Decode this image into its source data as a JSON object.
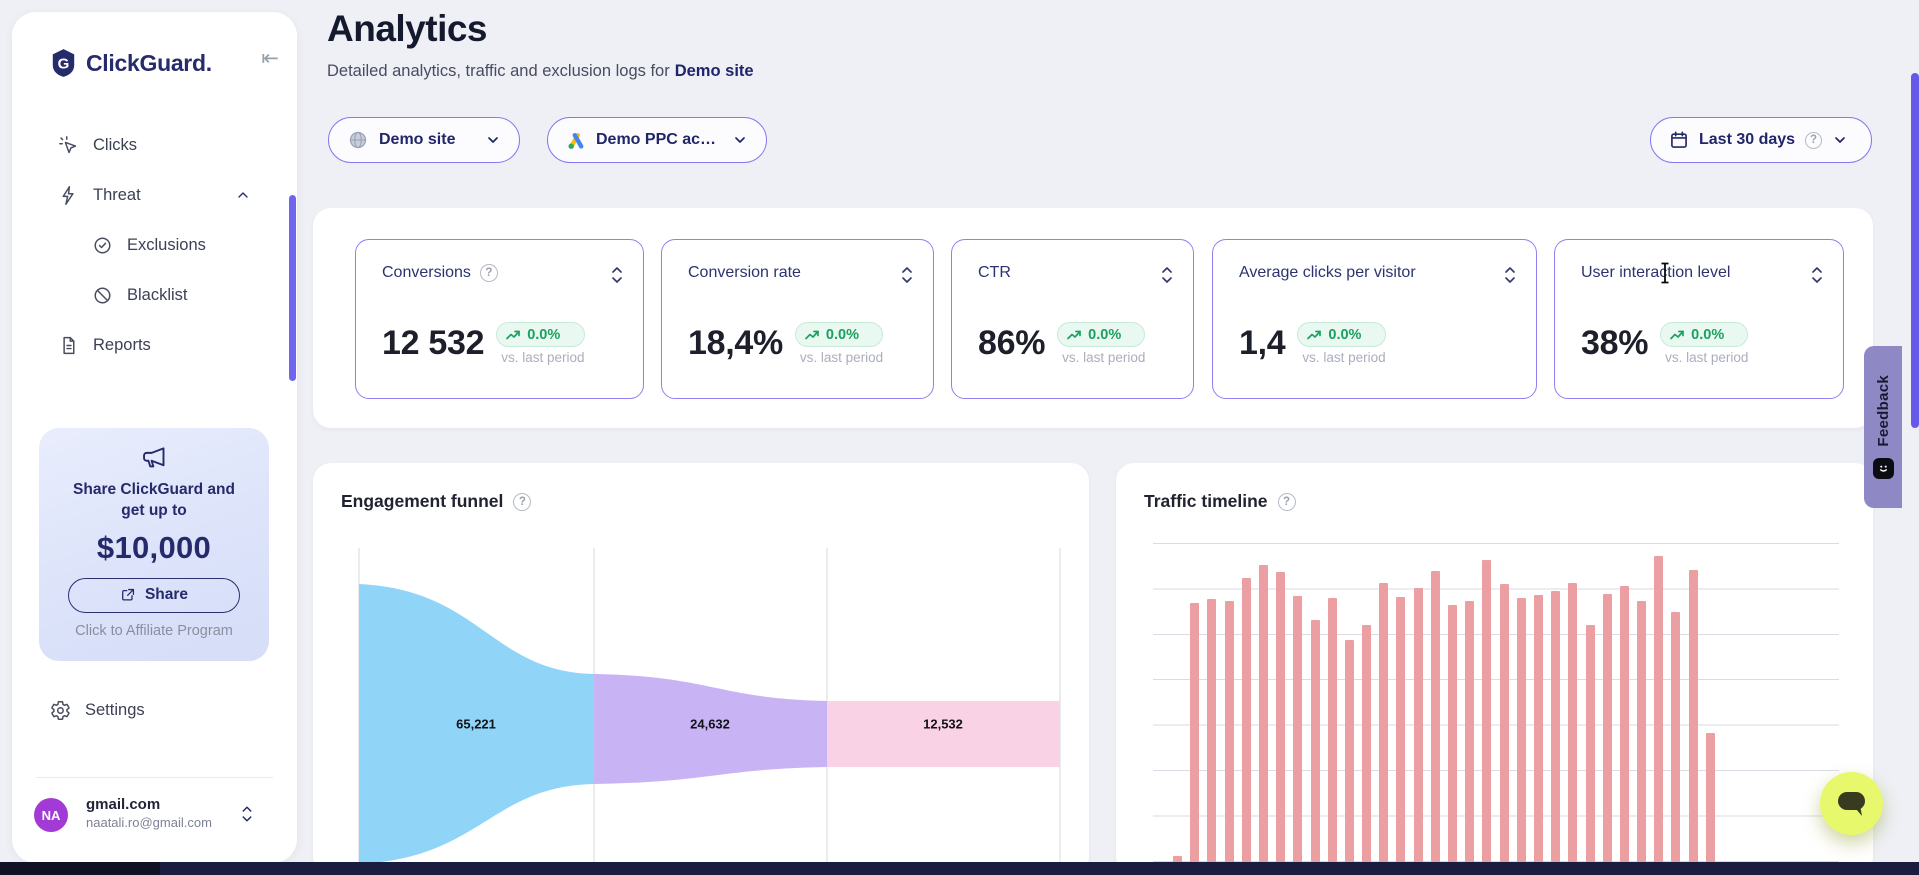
{
  "brand": {
    "name": "ClickGuard.",
    "navy": "#262b6b",
    "accent": "#6759e8"
  },
  "sidebar": {
    "nav": [
      {
        "label": "Clicks"
      },
      {
        "label": "Threat"
      },
      {
        "label": "Exclusions"
      },
      {
        "label": "Blacklist"
      },
      {
        "label": "Reports"
      }
    ],
    "promo": {
      "line1": "Share ClickGuard and",
      "line2": "get up to",
      "amount": "$10,000",
      "share_label": "Share",
      "caption": "Click to Affiliate Program"
    },
    "settings_label": "Settings",
    "account": {
      "initials": "NA",
      "name": "gmail.com",
      "email": "naatali.ro@gmail.com",
      "avatar_color": "#a23bd5"
    }
  },
  "header": {
    "title": "Analytics",
    "subtitle": "Detailed analytics, traffic and exclusion logs for",
    "subtitle_target": "Demo site"
  },
  "filters": {
    "site_label": "Demo site",
    "ppc_label": "Demo PPC ac…",
    "date_label": "Last 30 days"
  },
  "kpis": [
    {
      "title": "Conversions",
      "value": "12 532",
      "delta": "0.0%",
      "caption": "vs. last period"
    },
    {
      "title": "Conversion rate",
      "value": "18,4%",
      "delta": "0.0%",
      "caption": "vs. last period"
    },
    {
      "title": "CTR",
      "value": "86%",
      "delta": "0.0%",
      "caption": "vs. last period"
    },
    {
      "title": "Average clicks per visitor",
      "value": "1,4",
      "delta": "0.0%",
      "caption": "vs. last period"
    },
    {
      "title": "User interaction level",
      "value": "38%",
      "delta": "0.0%",
      "caption": "vs. last period"
    }
  ],
  "chart_data": [
    {
      "type": "funnel",
      "title": "Engagement funnel",
      "stages": [
        {
          "label": "65,221",
          "value": 65221
        },
        {
          "label": "24,632",
          "value": 24632
        },
        {
          "label": "12,532",
          "value": 12532
        }
      ],
      "colors": [
        "#90d5f8",
        "#c8b4f4",
        "#fad2e5"
      ],
      "gridlines": "vertical"
    },
    {
      "type": "bar",
      "title": "Traffic timeline",
      "bar_color": "#eb9fa3",
      "x_axis_labels_visible": false,
      "y_axis_labels_visible": false,
      "gridlines": "horizontal",
      "bars_visible_height_pct": [
        5.7,
        81.9,
        83.1,
        82.5,
        89.5,
        93.4,
        91.3,
        84.0,
        76.8,
        83.4,
        70.8,
        75.3,
        88.0,
        83.7,
        86.4,
        91.6,
        81.3,
        82.5,
        94.9,
        87.7,
        83.4,
        84.3,
        85.5,
        88.0,
        75.3,
        84.6,
        87.0,
        82.5,
        96.1,
        79.2,
        91.9,
        42.8
      ]
    }
  ],
  "feedback_label": "Feedback"
}
